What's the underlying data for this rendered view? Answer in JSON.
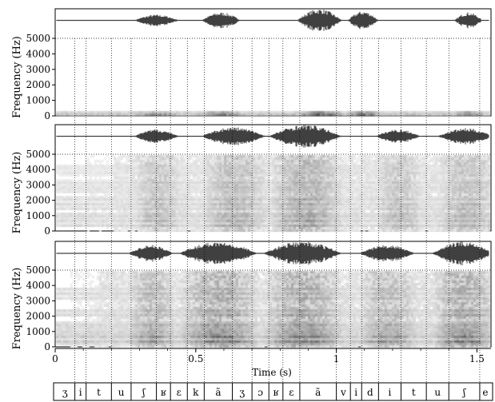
{
  "chart_data": {
    "type": "spectrogram",
    "panels": [
      {
        "id": "top",
        "ylabel": "Frequency (Hz)",
        "yticks": [
          0,
          1000,
          2000,
          3000,
          4000,
          5000
        ],
        "ylim": [
          0,
          5000
        ],
        "waveform_bursts": [
          [
            0.28,
            0.44,
            0.5
          ],
          [
            0.52,
            0.66,
            0.7
          ],
          [
            0.86,
            1.02,
            1.0
          ],
          [
            1.04,
            1.15,
            0.8
          ],
          [
            1.42,
            1.52,
            0.7
          ]
        ],
        "energy_bands_hz": [
          [
            150,
            450,
            0.8
          ]
        ],
        "noise_ranges": []
      },
      {
        "id": "middle",
        "ylabel": "Frequency (Hz)",
        "yticks": [
          0,
          1000,
          2000,
          3000,
          4000,
          5000
        ],
        "ylim": [
          0,
          5000
        ],
        "waveform_bursts": [
          [
            0.28,
            0.44,
            0.6
          ],
          [
            0.52,
            0.75,
            0.8
          ],
          [
            0.76,
            1.02,
            1.0
          ],
          [
            1.14,
            1.3,
            0.6
          ],
          [
            1.36,
            1.56,
            0.7
          ]
        ],
        "energy_bands_hz": [
          [
            300,
            1200,
            0.5
          ],
          [
            1400,
            2400,
            0.45
          ],
          [
            2600,
            3400,
            0.4
          ],
          [
            3600,
            4400,
            0.35
          ]
        ],
        "noise_ranges": [
          [
            0.1,
            0.2,
            0.3
          ],
          [
            0.2,
            1.6,
            0.55
          ]
        ]
      },
      {
        "id": "bottom",
        "ylabel": "Frequency (Hz)",
        "yticks": [
          0,
          1000,
          2000,
          3000,
          4000,
          5000
        ],
        "ylim": [
          0,
          5000
        ],
        "waveform_bursts": [
          [
            0.26,
            0.42,
            0.7
          ],
          [
            0.44,
            0.72,
            1.0
          ],
          [
            0.74,
            1.02,
            1.0
          ],
          [
            1.08,
            1.28,
            0.7
          ],
          [
            1.34,
            1.56,
            1.0
          ]
        ],
        "energy_bands_hz": [
          [
            200,
            900,
            0.7
          ],
          [
            1000,
            1700,
            0.55
          ],
          [
            2000,
            2600,
            0.5
          ],
          [
            3200,
            4000,
            0.45
          ]
        ],
        "noise_ranges": [
          [
            0.05,
            0.15,
            0.35
          ],
          [
            0.15,
            1.6,
            0.6
          ]
        ]
      }
    ],
    "xaxis": {
      "label": "Time (s)",
      "ticks": [
        "0",
        "0.5",
        "1",
        "1.5"
      ],
      "tick_values": [
        0,
        0.5,
        1,
        1.5
      ],
      "xlim": [
        0,
        1.55
      ]
    },
    "segments": [
      {
        "label": "ʒ",
        "start": 0.0,
        "end": 0.07
      },
      {
        "label": "i",
        "start": 0.07,
        "end": 0.11
      },
      {
        "label": "t",
        "start": 0.11,
        "end": 0.2
      },
      {
        "label": "u",
        "start": 0.2,
        "end": 0.27
      },
      {
        "label": "ʃ",
        "start": 0.27,
        "end": 0.36
      },
      {
        "label": "ʁ",
        "start": 0.36,
        "end": 0.41
      },
      {
        "label": "ɛ",
        "start": 0.41,
        "end": 0.47
      },
      {
        "label": "k",
        "start": 0.47,
        "end": 0.53
      },
      {
        "label": "ã",
        "start": 0.53,
        "end": 0.63
      },
      {
        "label": "ʒ",
        "start": 0.63,
        "end": 0.7
      },
      {
        "label": "ɔ",
        "start": 0.7,
        "end": 0.76
      },
      {
        "label": "ʁ",
        "start": 0.76,
        "end": 0.81
      },
      {
        "label": "ɛ",
        "start": 0.81,
        "end": 0.87
      },
      {
        "label": "ã",
        "start": 0.87,
        "end": 1.0
      },
      {
        "label": "v",
        "start": 1.0,
        "end": 1.05
      },
      {
        "label": "i",
        "start": 1.05,
        "end": 1.09
      },
      {
        "label": "d",
        "start": 1.09,
        "end": 1.15
      },
      {
        "label": "i",
        "start": 1.15,
        "end": 1.23
      },
      {
        "label": "t",
        "start": 1.23,
        "end": 1.32
      },
      {
        "label": "u",
        "start": 1.32,
        "end": 1.4
      },
      {
        "label": "ʃ",
        "start": 1.4,
        "end": 1.51
      },
      {
        "label": "e",
        "start": 1.51,
        "end": 1.55
      }
    ]
  }
}
